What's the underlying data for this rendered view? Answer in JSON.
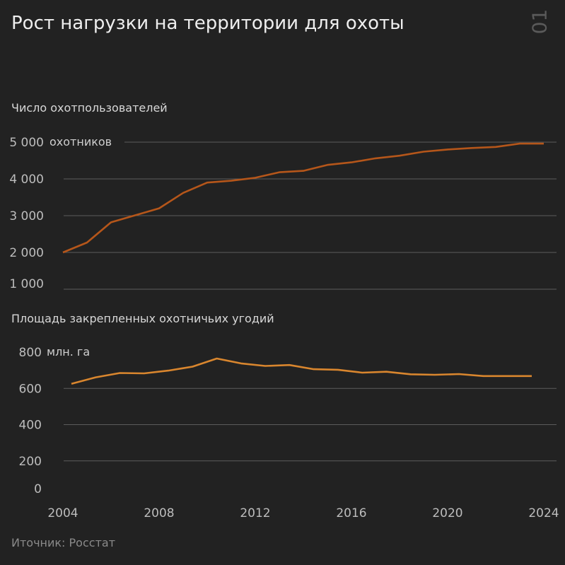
{
  "header": {
    "title": "Рост нагрузки на территории для охоты",
    "page_number": "01"
  },
  "footer": {
    "source": "Иточник: Росстат"
  },
  "colors": {
    "background": "#222222",
    "hunters_line": "#b5561a",
    "area_line": "#d9862e"
  },
  "chart_data": [
    {
      "type": "line",
      "title": "Число охотпользователей",
      "unit_label": "охотников",
      "x": [
        2004,
        2005,
        2006,
        2007,
        2008,
        2009,
        2010,
        2011,
        2012,
        2013,
        2014,
        2015,
        2016,
        2017,
        2018,
        2019,
        2020,
        2021,
        2022,
        2023,
        2024
      ],
      "series": [
        {
          "values": [
            2000,
            2270,
            2820,
            3010,
            3200,
            3620,
            3900,
            3950,
            4030,
            4180,
            4220,
            4380,
            4450,
            4560,
            4630,
            4740,
            4800,
            4840,
            4870,
            4960,
            4960
          ]
        }
      ],
      "y_ticks": [
        {
          "value": 5000,
          "label": "5 000"
        },
        {
          "value": 4000,
          "label": "4 000"
        },
        {
          "value": 3000,
          "label": "3 000"
        },
        {
          "value": 2000,
          "label": "2 000"
        },
        {
          "value": 1000,
          "label": "1 000"
        }
      ],
      "ylim": [
        1000,
        5000
      ],
      "grid": true
    },
    {
      "type": "line",
      "title": "Площадь закрепленных охотничьих угодий",
      "unit_label": "млн. га",
      "x": [
        2004,
        2005,
        2006,
        2007,
        2008,
        2009,
        2010,
        2011,
        2012,
        2013,
        2014,
        2015,
        2016,
        2017,
        2018,
        2019,
        2020,
        2021,
        2022,
        2023
      ],
      "series": [
        {
          "values": [
            625,
            661,
            685,
            683,
            698,
            720,
            765,
            738,
            724,
            729,
            706,
            703,
            687,
            692,
            678,
            675,
            679,
            668,
            668,
            668
          ]
        }
      ],
      "y_ticks": [
        {
          "value": 800,
          "label": "800"
        },
        {
          "value": 600,
          "label": "600"
        },
        {
          "value": 400,
          "label": "400"
        },
        {
          "value": 200,
          "label": "200"
        },
        {
          "value": 0,
          "label": "0"
        }
      ],
      "ylim": [
        0,
        800
      ],
      "grid": true
    }
  ],
  "x_axis": {
    "ticks": [
      {
        "value": 2004,
        "label": "2004"
      },
      {
        "value": 2008,
        "label": "2008"
      },
      {
        "value": 2012,
        "label": "2012"
      },
      {
        "value": 2016,
        "label": "2016"
      },
      {
        "value": 2020,
        "label": "2020"
      },
      {
        "value": 2024,
        "label": "2024"
      }
    ]
  }
}
